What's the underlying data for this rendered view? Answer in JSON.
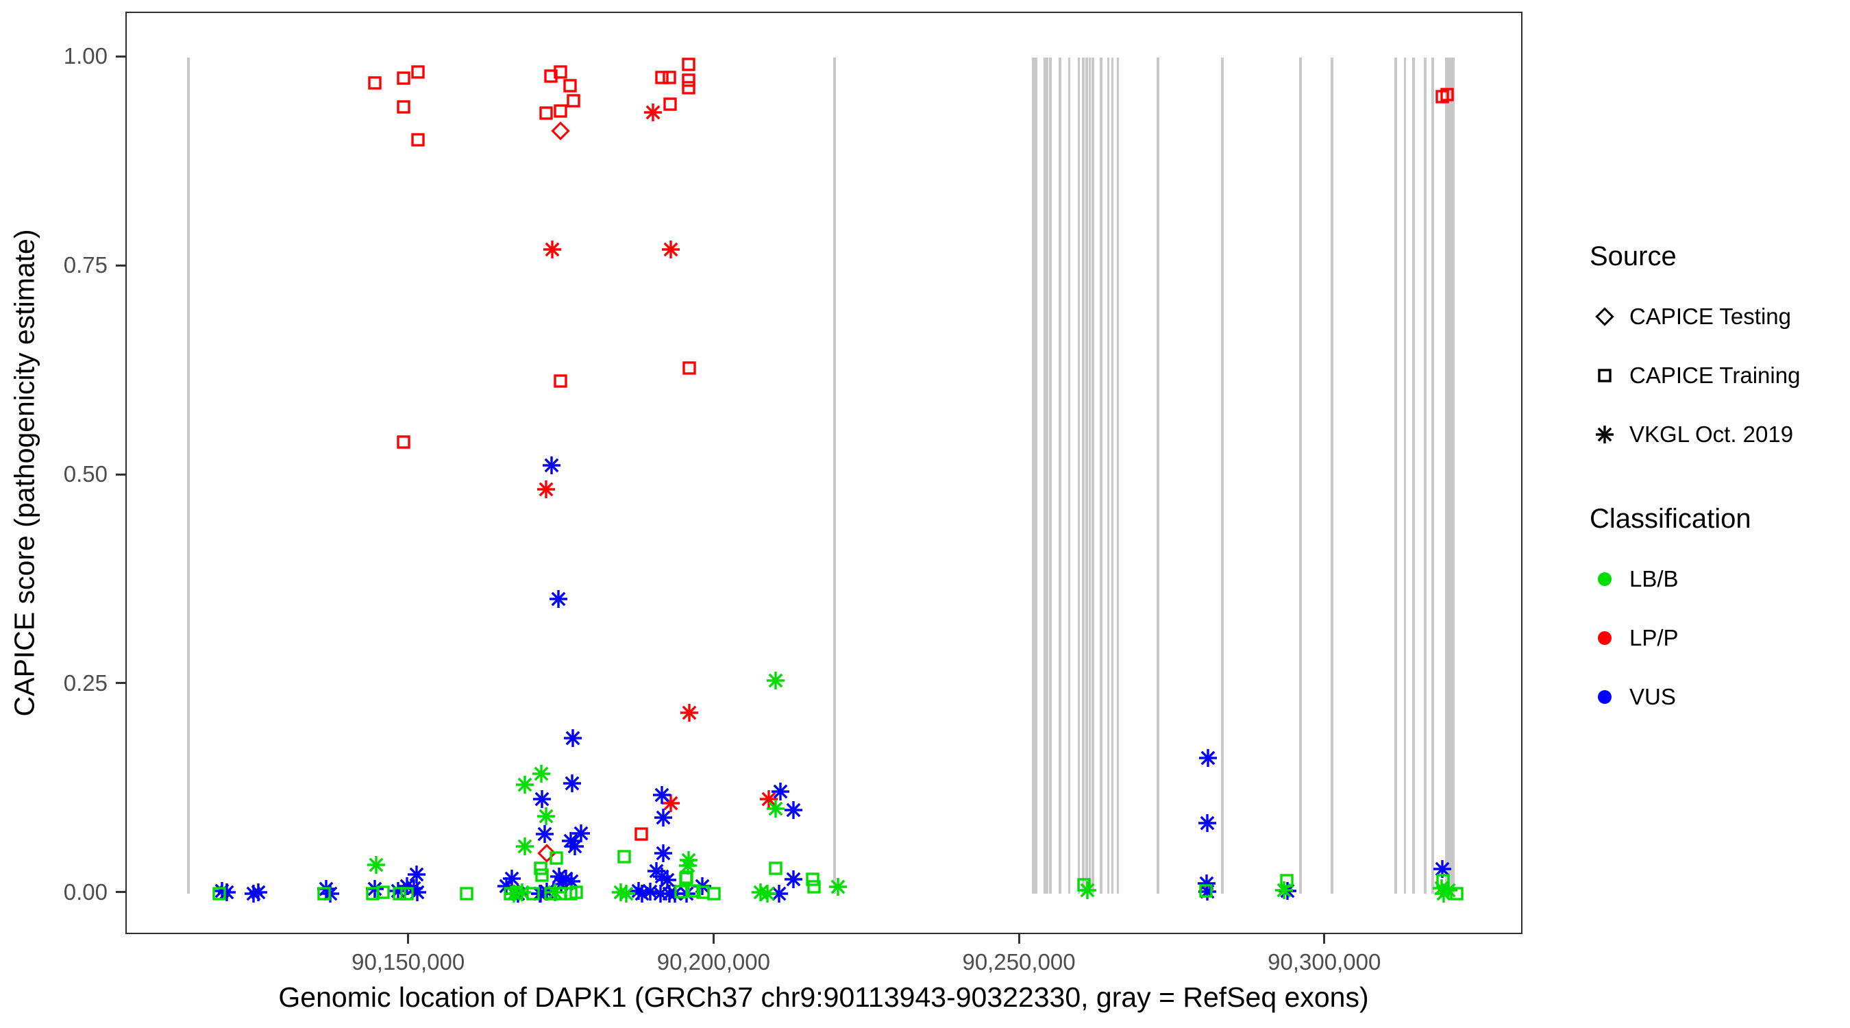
{
  "chart_data": {
    "type": "scatter",
    "title": "",
    "xlabel": "Genomic location of DAPK1 (GRCh37 chr9:90113943-90322330, gray = RefSeq exons)",
    "ylabel": "CAPICE score (pathogenicity estimate)",
    "xlim": [
      90103700,
      90332450
    ],
    "ylim": [
      -0.0504,
      1.0537
    ],
    "grid": "off",
    "legend_position": "right",
    "x_ticks": [
      {
        "v": 90150000,
        "label": "90,150,000"
      },
      {
        "v": 90200000,
        "label": "90,200,000"
      },
      {
        "v": 90250000,
        "label": "90,250,000"
      },
      {
        "v": 90300000,
        "label": "90,300,000"
      }
    ],
    "y_ticks": [
      {
        "v": 0.0,
        "label": "0.00"
      },
      {
        "v": 0.25,
        "label": "0.25"
      },
      {
        "v": 0.5,
        "label": "0.50"
      },
      {
        "v": 0.75,
        "label": "0.75"
      },
      {
        "v": 1.0,
        "label": "1.00"
      }
    ],
    "colors": {
      "LB/B": "#00dd00",
      "LP/P": "#ff0000",
      "VUS": "#0000ff",
      "exon": "#c8c8c8",
      "tick_text": "#4d4d4d"
    },
    "source_legend": {
      "title": "Source",
      "items": [
        {
          "label": "CAPICE Testing",
          "shape": "diamond"
        },
        {
          "label": "CAPICE Training",
          "shape": "square"
        },
        {
          "label": "VKGL Oct. 2019",
          "shape": "asterisk"
        }
      ]
    },
    "class_legend": {
      "title": "Classification",
      "items": [
        {
          "label": "LB/B"
        },
        {
          "label": "LP/P"
        },
        {
          "label": "VUS"
        }
      ]
    },
    "exons_bp": [
      [
        90113800,
        450
      ],
      [
        90219600,
        450
      ],
      [
        90252100,
        400
      ],
      [
        90252600,
        400
      ],
      [
        90254000,
        400
      ],
      [
        90254400,
        400
      ],
      [
        90254900,
        400
      ],
      [
        90256500,
        400
      ],
      [
        90258000,
        400
      ],
      [
        90259600,
        400
      ],
      [
        90260300,
        400
      ],
      [
        90260900,
        400
      ],
      [
        90261400,
        400
      ],
      [
        90261900,
        400
      ],
      [
        90263200,
        400
      ],
      [
        90264400,
        400
      ],
      [
        90265100,
        400
      ],
      [
        90266000,
        400
      ],
      [
        90272500,
        450
      ],
      [
        90283100,
        450
      ],
      [
        90295900,
        450
      ],
      [
        90301000,
        450
      ],
      [
        90311500,
        400
      ],
      [
        90313000,
        400
      ],
      [
        90314400,
        400
      ],
      [
        90316300,
        400
      ],
      [
        90317500,
        400
      ],
      [
        90320300,
        1600
      ]
    ],
    "points": [
      [
        90144300,
        0.97,
        "train",
        "LP/P"
      ],
      [
        90149000,
        0.976,
        "train",
        "LP/P"
      ],
      [
        90151400,
        0.983,
        "train",
        "LP/P"
      ],
      [
        90149000,
        0.941,
        "train",
        "LP/P"
      ],
      [
        90151400,
        0.902,
        "train",
        "LP/P"
      ],
      [
        90173100,
        0.978,
        "train",
        "LP/P"
      ],
      [
        90174700,
        0.983,
        "train",
        "LP/P"
      ],
      [
        90176300,
        0.967,
        "train",
        "LP/P"
      ],
      [
        90176800,
        0.949,
        "train",
        "LP/P"
      ],
      [
        90174700,
        0.936,
        "train",
        "LP/P"
      ],
      [
        90172400,
        0.934,
        "train",
        "LP/P"
      ],
      [
        90191300,
        0.977,
        "train",
        "LP/P"
      ],
      [
        90192500,
        0.977,
        "train",
        "LP/P"
      ],
      [
        90195700,
        0.992,
        "train",
        "LP/P"
      ],
      [
        90195700,
        0.973,
        "train",
        "LP/P"
      ],
      [
        90195700,
        0.964,
        "train",
        "LP/P"
      ],
      [
        90192700,
        0.945,
        "train",
        "LP/P"
      ],
      [
        90319100,
        0.954,
        "train",
        "LP/P"
      ],
      [
        90319900,
        0.956,
        "train",
        "LP/P"
      ],
      [
        90174700,
        0.613,
        "train",
        "LP/P"
      ],
      [
        90195800,
        0.629,
        "train",
        "LP/P"
      ],
      [
        90149000,
        0.54,
        "train",
        "LP/P"
      ],
      [
        90187900,
        0.071,
        "train",
        "LP/P"
      ],
      [
        90174700,
        0.913,
        "test",
        "LP/P"
      ],
      [
        90172500,
        0.048,
        "test",
        "LP/P"
      ],
      [
        90189900,
        0.935,
        "vkgl",
        "LP/P"
      ],
      [
        90173400,
        0.771,
        "vkgl",
        "LP/P"
      ],
      [
        90192800,
        0.771,
        "vkgl",
        "LP/P"
      ],
      [
        90172400,
        0.484,
        "vkgl",
        "LP/P"
      ],
      [
        90195800,
        0.216,
        "vkgl",
        "LP/P"
      ],
      [
        90208800,
        0.113,
        "vkgl",
        "LP/P"
      ],
      [
        90192800,
        0.108,
        "vkgl",
        "LP/P"
      ],
      [
        90173300,
        0.512,
        "vkgl",
        "VUS"
      ],
      [
        90174400,
        0.352,
        "vkgl",
        "VUS"
      ],
      [
        90176700,
        0.186,
        "vkgl",
        "VUS"
      ],
      [
        90280700,
        0.162,
        "vkgl",
        "VUS"
      ],
      [
        90176600,
        0.132,
        "vkgl",
        "VUS"
      ],
      [
        90210700,
        0.122,
        "vkgl",
        "VUS"
      ],
      [
        90191300,
        0.118,
        "vkgl",
        "VUS"
      ],
      [
        90171700,
        0.113,
        "vkgl",
        "VUS"
      ],
      [
        90212900,
        0.1,
        "vkgl",
        "VUS"
      ],
      [
        90191500,
        0.091,
        "vkgl",
        "VUS"
      ],
      [
        90280600,
        0.084,
        "vkgl",
        "VUS"
      ],
      [
        90172100,
        0.071,
        "vkgl",
        "VUS"
      ],
      [
        90178100,
        0.072,
        "vkgl",
        "VUS"
      ],
      [
        90176400,
        0.063,
        "vkgl",
        "VUS"
      ],
      [
        90177100,
        0.056,
        "vkgl",
        "VUS"
      ],
      [
        90191500,
        0.048,
        "vkgl",
        "VUS"
      ],
      [
        90190400,
        0.027,
        "vkgl",
        "VUS"
      ],
      [
        90151200,
        0.023,
        "vkgl",
        "VUS"
      ],
      [
        90174500,
        0.02,
        "vkgl",
        "VUS"
      ],
      [
        90191300,
        0.02,
        "vkgl",
        "VUS"
      ],
      [
        90166700,
        0.018,
        "vkgl",
        "VUS"
      ],
      [
        90175600,
        0.018,
        "vkgl",
        "VUS"
      ],
      [
        90192200,
        0.016,
        "vkgl",
        "VUS"
      ],
      [
        90176500,
        0.014,
        "vkgl",
        "VUS"
      ],
      [
        90280500,
        0.012,
        "vkgl",
        "VUS"
      ],
      [
        90174800,
        0.011,
        "vkgl",
        "VUS"
      ],
      [
        90319100,
        0.029,
        "vkgl",
        "VUS"
      ],
      [
        90119300,
        0.003,
        "vkgl",
        "VUS"
      ],
      [
        90120100,
        0.001,
        "vkgl",
        "VUS"
      ],
      [
        90124500,
        0.0,
        "vkgl",
        "VUS"
      ],
      [
        90125200,
        0.001,
        "vkgl",
        "VUS"
      ],
      [
        90136300,
        0.005,
        "vkgl",
        "VUS"
      ],
      [
        90137000,
        0.0,
        "vkgl",
        "VUS"
      ],
      [
        90144300,
        0.005,
        "vkgl",
        "VUS"
      ],
      [
        90148100,
        0.003,
        "vkgl",
        "VUS"
      ],
      [
        90149600,
        0.009,
        "vkgl",
        "VUS"
      ],
      [
        90151300,
        0.001,
        "vkgl",
        "VUS"
      ],
      [
        90150700,
        0.006,
        "vkgl",
        "VUS"
      ],
      [
        90165900,
        0.009,
        "vkgl",
        "VUS"
      ],
      [
        90167800,
        0.0,
        "vkgl",
        "VUS"
      ],
      [
        90171500,
        0.0,
        "vkgl",
        "VUS"
      ],
      [
        90172500,
        0.002,
        "vkgl",
        "VUS"
      ],
      [
        90171300,
        0.0,
        "vkgl",
        "VUS"
      ],
      [
        90187500,
        0.003,
        "vkgl",
        "VUS"
      ],
      [
        90188100,
        0.0,
        "vkgl",
        "VUS"
      ],
      [
        90189400,
        0.002,
        "vkgl",
        "VUS"
      ],
      [
        90191100,
        0.0,
        "vkgl",
        "VUS"
      ],
      [
        90192600,
        0.0,
        "vkgl",
        "VUS"
      ],
      [
        90195400,
        0.0,
        "vkgl",
        "VUS"
      ],
      [
        90193500,
        0.0,
        "vkgl",
        "VUS"
      ],
      [
        90197900,
        0.009,
        "vkgl",
        "VUS"
      ],
      [
        90210500,
        0.0,
        "vkgl",
        "VUS"
      ],
      [
        90212900,
        0.017,
        "vkgl",
        "VUS"
      ],
      [
        90280600,
        0.002,
        "vkgl",
        "VUS"
      ],
      [
        90293700,
        0.003,
        "vkgl",
        "VUS"
      ],
      [
        90209900,
        0.255,
        "vkgl",
        "LB/B"
      ],
      [
        90171600,
        0.143,
        "vkgl",
        "LB/B"
      ],
      [
        90168900,
        0.13,
        "vkgl",
        "LB/B"
      ],
      [
        90209900,
        0.101,
        "vkgl",
        "LB/B"
      ],
      [
        90172400,
        0.092,
        "vkgl",
        "LB/B"
      ],
      [
        90168900,
        0.056,
        "vkgl",
        "LB/B"
      ],
      [
        90195700,
        0.04,
        "vkgl",
        "LB/B"
      ],
      [
        90144500,
        0.034,
        "vkgl",
        "LB/B"
      ],
      [
        90195600,
        0.033,
        "vkgl",
        "LB/B"
      ],
      [
        90167100,
        0.0,
        "vkgl",
        "LB/B"
      ],
      [
        90168400,
        0.001,
        "vkgl",
        "LB/B"
      ],
      [
        90173800,
        0.001,
        "vkgl",
        "LB/B"
      ],
      [
        90184600,
        0.001,
        "vkgl",
        "LB/B"
      ],
      [
        90185500,
        0.0,
        "vkgl",
        "LB/B"
      ],
      [
        90207500,
        0.001,
        "vkgl",
        "LB/B"
      ],
      [
        90208600,
        0.0,
        "vkgl",
        "LB/B"
      ],
      [
        90220200,
        0.008,
        "vkgl",
        "LB/B"
      ],
      [
        90261000,
        0.004,
        "vkgl",
        "LB/B"
      ],
      [
        90293200,
        0.004,
        "vkgl",
        "LB/B"
      ],
      [
        90319000,
        0.006,
        "vkgl",
        "LB/B"
      ],
      [
        90319300,
        0.0,
        "vkgl",
        "LB/B"
      ],
      [
        90320100,
        0.004,
        "vkgl",
        "LB/B"
      ],
      [
        90185200,
        0.044,
        "train",
        "LB/B"
      ],
      [
        90174000,
        0.042,
        "train",
        "LB/B"
      ],
      [
        90171500,
        0.03,
        "train",
        "LB/B"
      ],
      [
        90171700,
        0.022,
        "train",
        "LB/B"
      ],
      [
        90209900,
        0.03,
        "train",
        "LB/B"
      ],
      [
        90195400,
        0.019,
        "train",
        "LB/B"
      ],
      [
        90195200,
        0.018,
        "train",
        "LB/B"
      ],
      [
        90216000,
        0.017,
        "train",
        "LB/B"
      ],
      [
        90319200,
        0.015,
        "train",
        "LB/B"
      ],
      [
        90293600,
        0.015,
        "train",
        "LB/B"
      ],
      [
        90118900,
        0.0,
        "train",
        "LB/B"
      ],
      [
        90136000,
        0.0,
        "train",
        "LB/B"
      ],
      [
        90144000,
        0.0,
        "train",
        "LB/B"
      ],
      [
        90145700,
        0.001,
        "train",
        "LB/B"
      ],
      [
        90148300,
        0.0,
        "train",
        "LB/B"
      ],
      [
        90149600,
        0.0,
        "train",
        "LB/B"
      ],
      [
        90159300,
        0.0,
        "train",
        "LB/B"
      ],
      [
        90166500,
        0.0,
        "train",
        "LB/B"
      ],
      [
        90167500,
        0.001,
        "train",
        "LB/B"
      ],
      [
        90170200,
        0.0,
        "train",
        "LB/B"
      ],
      [
        90173200,
        0.0,
        "train",
        "LB/B"
      ],
      [
        90174700,
        0.0,
        "train",
        "LB/B"
      ],
      [
        90176400,
        0.0,
        "train",
        "LB/B"
      ],
      [
        90177300,
        0.001,
        "train",
        "LB/B"
      ],
      [
        90194500,
        0.002,
        "train",
        "LB/B"
      ],
      [
        90196600,
        0.003,
        "train",
        "LB/B"
      ],
      [
        90198000,
        0.001,
        "train",
        "LB/B"
      ],
      [
        90199900,
        0.0,
        "train",
        "LB/B"
      ],
      [
        90216200,
        0.008,
        "train",
        "LB/B"
      ],
      [
        90260400,
        0.01,
        "train",
        "LB/B"
      ],
      [
        90280400,
        0.003,
        "train",
        "LB/B"
      ],
      [
        90321400,
        0.0,
        "train",
        "LB/B"
      ]
    ]
  }
}
